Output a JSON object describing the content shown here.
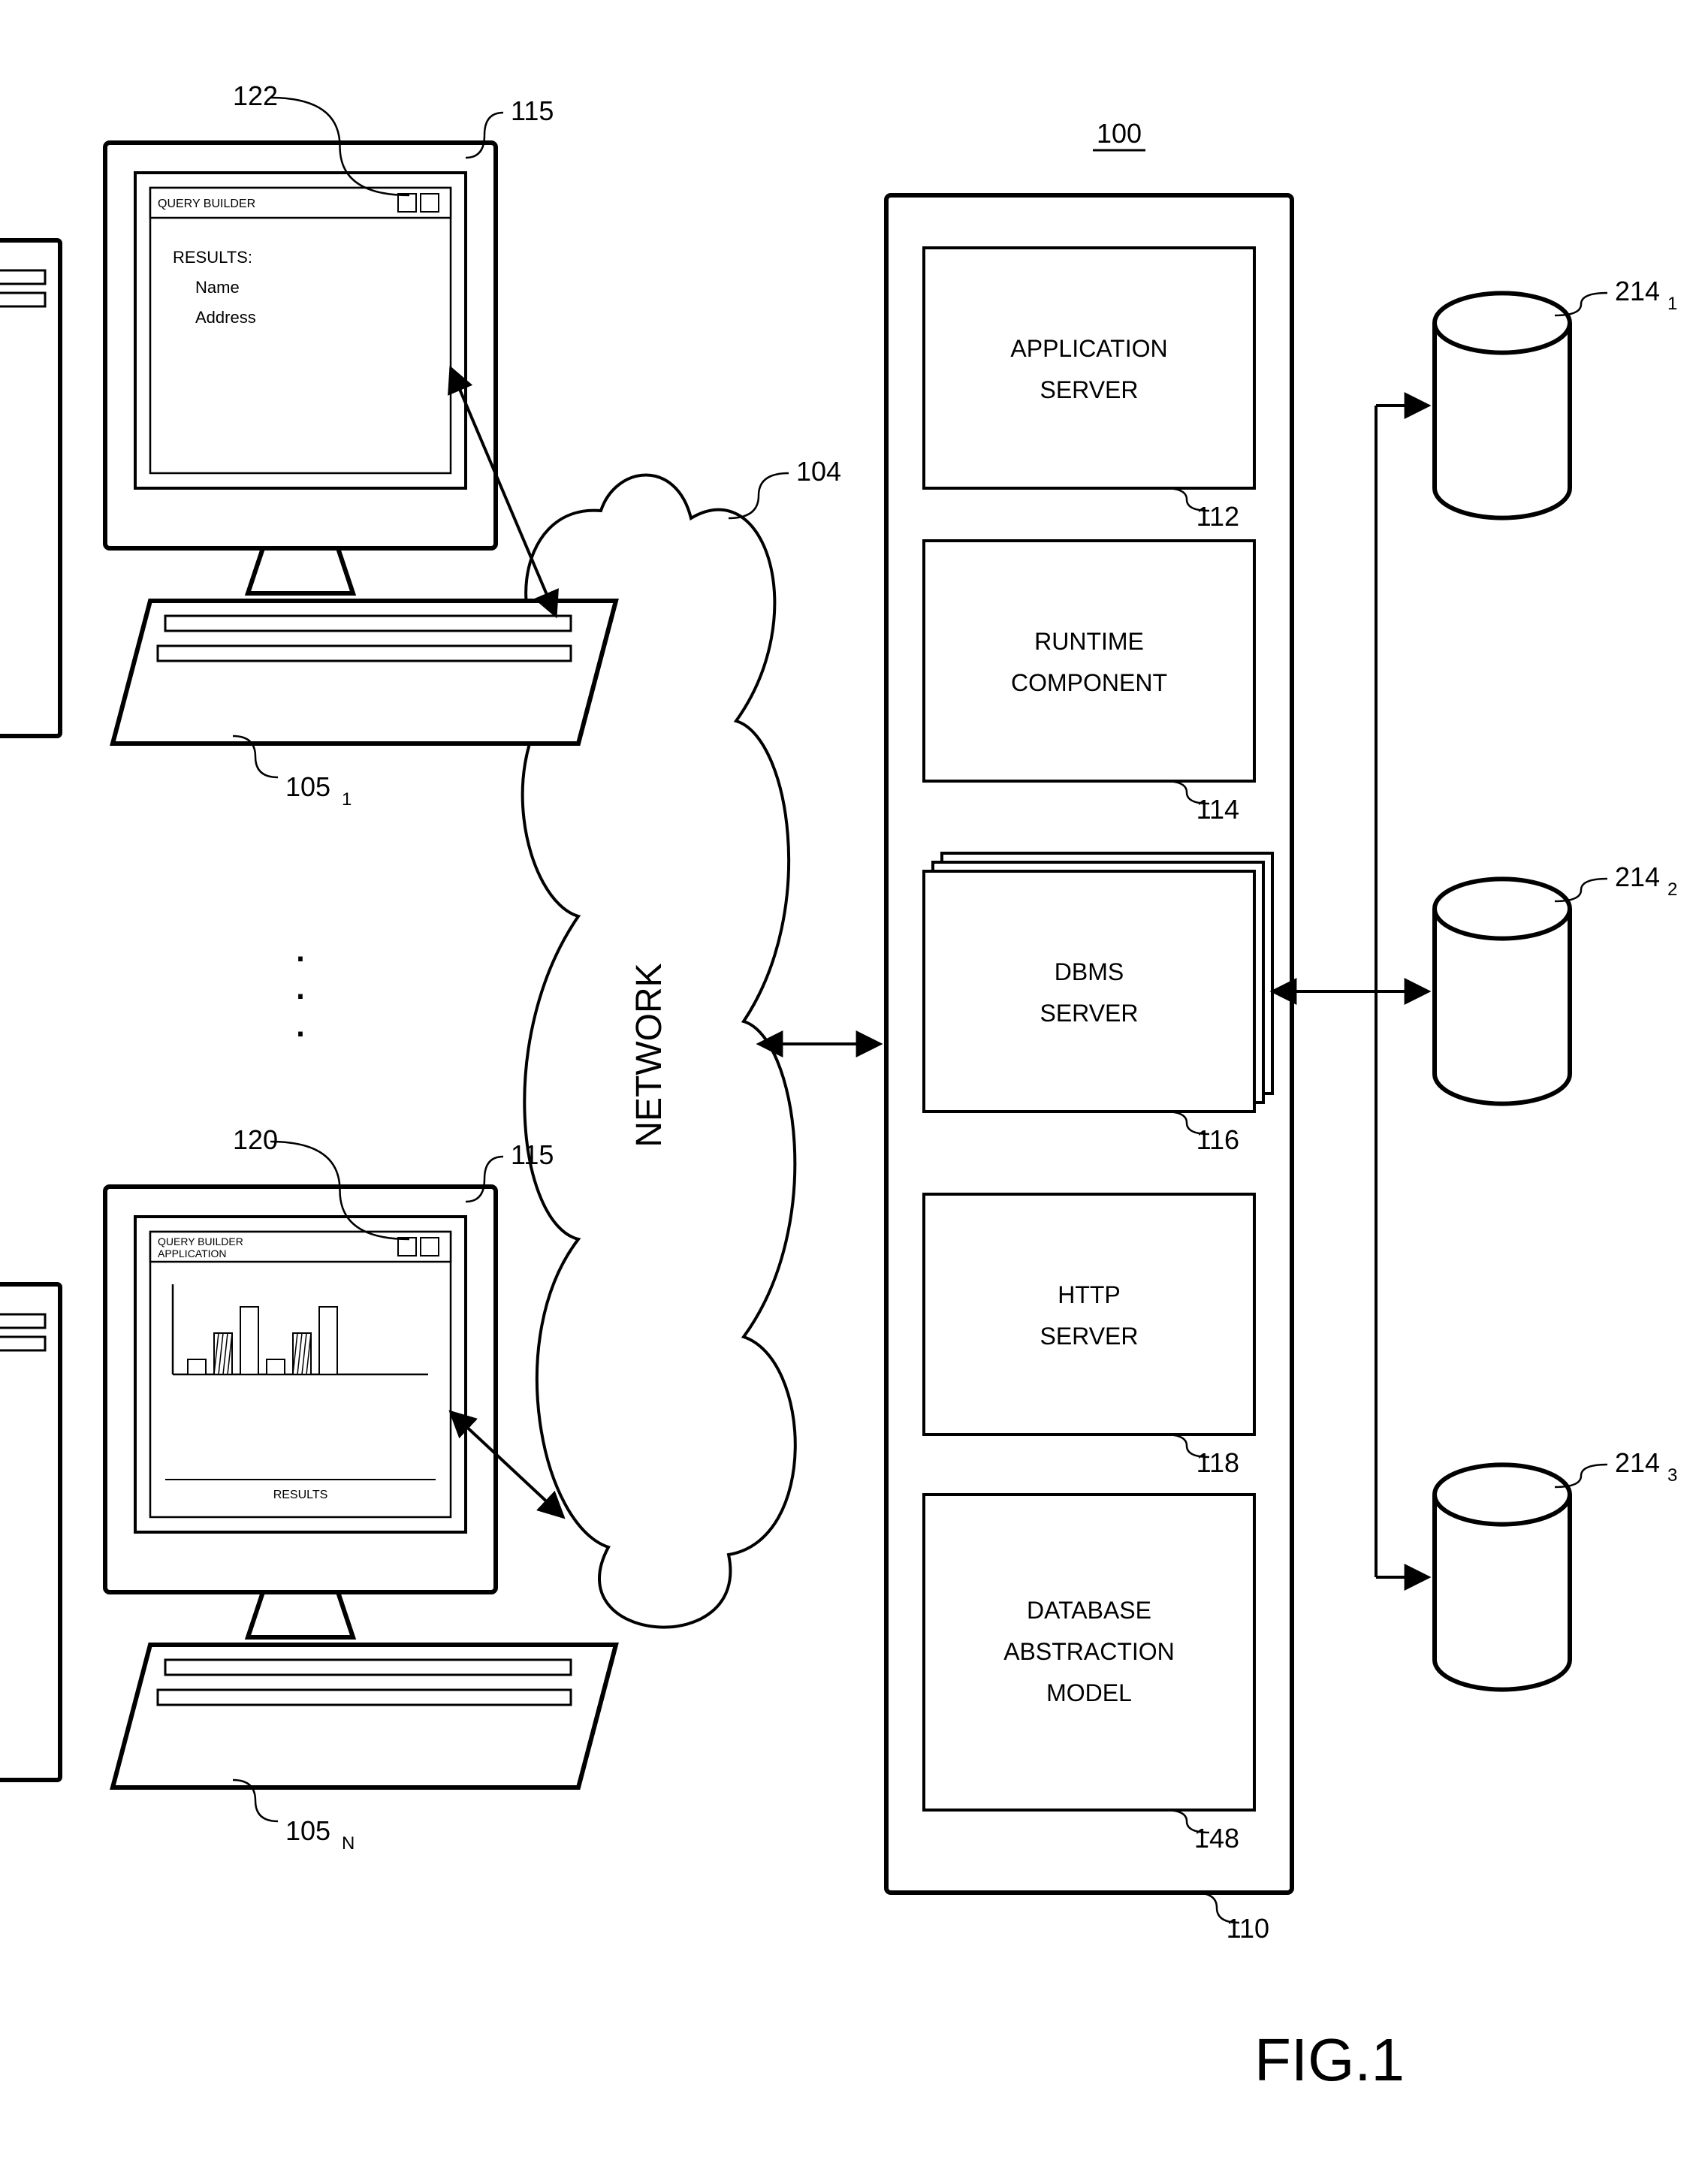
{
  "figure_label": "FIG.1",
  "system_ref": "100",
  "network": {
    "label": "NETWORK",
    "ref": "104"
  },
  "server": {
    "ref": "110",
    "components": [
      {
        "id": "app",
        "label_line1": "APPLICATION",
        "label_line2": "SERVER",
        "ref": "112"
      },
      {
        "id": "runtime",
        "label_line1": "RUNTIME",
        "label_line2": "COMPONENT",
        "ref": "114"
      },
      {
        "id": "dbms",
        "label_line1": "DBMS",
        "label_line2": "SERVER",
        "ref": "116"
      },
      {
        "id": "http",
        "label_line1": "HTTP",
        "label_line2": "SERVER",
        "ref": "118"
      },
      {
        "id": "dam",
        "label_line1": "DATABASE",
        "label_line2": "ABSTRACTION",
        "label_line3": "MODEL",
        "ref": "148"
      }
    ]
  },
  "databases": [
    {
      "ref": "214",
      "sub": "1"
    },
    {
      "ref": "214",
      "sub": "2"
    },
    {
      "ref": "214",
      "sub": "3"
    }
  ],
  "clients": [
    {
      "ref": "105",
      "sub": "1",
      "iface_ref": "115",
      "window_ref": "122",
      "window_title": "QUERY BUILDER",
      "body_lines": [
        "RESULTS:",
        "Name",
        "Address"
      ]
    },
    {
      "ref": "105",
      "sub": "N",
      "iface_ref": "115",
      "window_ref": "120",
      "window_title_line1": "QUERY BUILDER",
      "window_title_line2": "APPLICATION",
      "results_label": "RESULTS"
    }
  ],
  "ellipsis": "⋮",
  "style": {
    "stroke": "#000000",
    "stroke_width_heavy": 6,
    "stroke_width_medium": 4,
    "stroke_width_light": 2.5,
    "fill": "#ffffff",
    "font_large": 44,
    "font_med": 32,
    "font_small": 22,
    "font_tiny": 16,
    "font_ref": 36
  }
}
